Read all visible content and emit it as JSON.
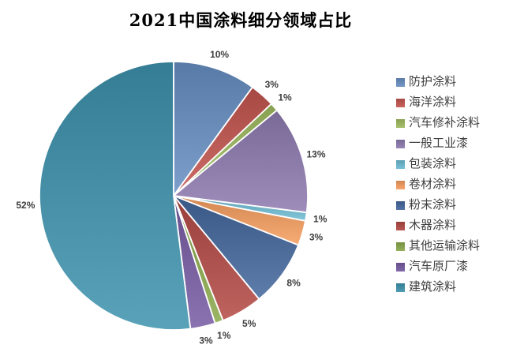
{
  "title": "2021中国涂料细分领域占比",
  "chart_data": {
    "type": "pie",
    "title": "2021中国涂料细分领域占比",
    "categories": [
      "防护涂料",
      "海洋涂料",
      "汽车修补涂料",
      "一般工业漆",
      "包装涂料",
      "卷材涂料",
      "粉末涂料",
      "木器涂料",
      "其他运输涂料",
      "汽车原厂漆",
      "建筑涂料"
    ],
    "values": [
      10,
      3,
      1,
      13,
      1,
      3,
      8,
      5,
      1,
      3,
      52
    ],
    "labels": [
      "10%",
      "3%",
      "1%",
      "13%",
      "1%",
      "3%",
      "8%",
      "5%",
      "1%",
      "3%",
      "52%"
    ],
    "unit": "%",
    "colors": [
      "#688FC3",
      "#C4554F",
      "#A0BC60",
      "#8E7BB0",
      "#6FBCD3",
      "#F79E5F",
      "#44689D",
      "#B44A45",
      "#8BA94C",
      "#775CA3",
      "#3E93AE"
    ],
    "start_angle_deg": 0,
    "direction": "clockwise",
    "legend_position": "right",
    "slice_label_color": "#3D3D3D",
    "stroke_color": "#FFFFFF",
    "title_color": "#000000"
  }
}
